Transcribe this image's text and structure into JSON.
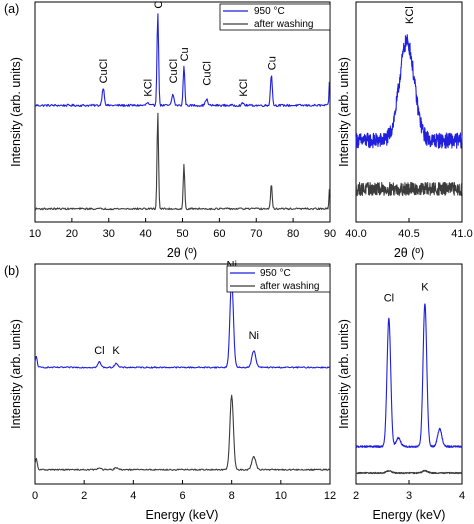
{
  "figure": {
    "panels": [
      "(a)",
      "(b)"
    ]
  },
  "colors": {
    "blue": "#1f1fdc",
    "gray": "#3c3c3c",
    "axis": "#000000"
  },
  "chart_data": [
    {
      "id": "a-main",
      "type": "line",
      "panel_tag": "(a)",
      "xlabel": "2θ (º)",
      "ylabel": "Intensity (arb. units)",
      "xlim": [
        10,
        90
      ],
      "xticks": [
        10,
        20,
        30,
        40,
        50,
        60,
        70,
        80,
        90
      ],
      "ylim": [
        0,
        1
      ],
      "legend": {
        "placement": "top-right"
      },
      "series": [
        {
          "name": "950 °C",
          "color": "#1f1fdc",
          "baseline": 0.53,
          "noise": 0.005,
          "peaks": [
            [
              28.5,
              0.08,
              0.3
            ],
            [
              40.5,
              0.012,
              0.3
            ],
            [
              43.3,
              0.42,
              0.22
            ],
            [
              47.4,
              0.05,
              0.3
            ],
            [
              50.4,
              0.18,
              0.22
            ],
            [
              56.5,
              0.03,
              0.3
            ],
            [
              66.4,
              0.01,
              0.3
            ],
            [
              74.1,
              0.14,
              0.25
            ],
            [
              89.9,
              0.13,
              0.15
            ]
          ]
        },
        {
          "name": "after washing",
          "color": "#3c3c3c",
          "baseline": 0.06,
          "noise": 0.004,
          "peaks": [
            [
              43.3,
              0.44,
              0.2
            ],
            [
              50.4,
              0.2,
              0.2
            ],
            [
              74.1,
              0.11,
              0.22
            ],
            [
              89.9,
              0.11,
              0.15
            ]
          ]
        }
      ],
      "annotations": [
        {
          "text": "CuCl",
          "x": 28.5,
          "y": 0.63
        },
        {
          "text": "KCl",
          "x": 40.5,
          "y": 0.57
        },
        {
          "text": "Cu",
          "x": 43.3,
          "y": 0.97
        },
        {
          "text": "CuCl",
          "x": 47.4,
          "y": 0.63
        },
        {
          "text": "Cu",
          "x": 50.4,
          "y": 0.73
        },
        {
          "text": "CuCl",
          "x": 56.5,
          "y": 0.62
        },
        {
          "text": "KCl",
          "x": 66.4,
          "y": 0.57
        },
        {
          "text": "Cu",
          "x": 74.1,
          "y": 0.69
        }
      ]
    },
    {
      "id": "a-inset",
      "type": "line",
      "xlabel": "2θ (º)",
      "ylabel": "Intensity (arb. units)",
      "xlim": [
        40.0,
        41.0
      ],
      "xticks": [
        "40.0",
        "40.5",
        "41.0"
      ],
      "ylim": [
        0,
        1
      ],
      "series": [
        {
          "name": "",
          "color": "#1f1fdc",
          "baseline": 0.37,
          "noise": 0.035,
          "peaks": [
            [
              40.48,
              0.45,
              0.07
            ]
          ]
        },
        {
          "name": "",
          "color": "#3c3c3c",
          "baseline": 0.15,
          "noise": 0.03,
          "peaks": []
        }
      ],
      "annotations": [
        {
          "text": "KCl",
          "x": 40.5,
          "y": 0.9
        }
      ]
    },
    {
      "id": "b-main",
      "type": "line",
      "panel_tag": "(b)",
      "xlabel": "Energy (keV)",
      "ylabel": "Intensity (arb. units)",
      "xlim": [
        0,
        12
      ],
      "xticks": [
        0,
        2,
        4,
        6,
        8,
        10,
        12
      ],
      "ylim": [
        0,
        1
      ],
      "legend": {
        "placement": "top-right"
      },
      "series": [
        {
          "name": "950 °C",
          "color": "#1f1fdc",
          "baseline": 0.53,
          "noise": 0.003,
          "peaks": [
            [
              2.62,
              0.025,
              0.06
            ],
            [
              3.3,
              0.02,
              0.06
            ],
            [
              8.0,
              0.4,
              0.07
            ],
            [
              8.9,
              0.075,
              0.08
            ],
            [
              0.05,
              0.05,
              0.04
            ]
          ]
        },
        {
          "name": "after washing",
          "color": "#3c3c3c",
          "baseline": 0.065,
          "noise": 0.003,
          "peaks": [
            [
              8.0,
              0.34,
              0.07
            ],
            [
              8.9,
              0.06,
              0.08
            ],
            [
              2.62,
              0.01,
              0.06
            ],
            [
              3.3,
              0.01,
              0.06
            ],
            [
              0.05,
              0.05,
              0.04
            ]
          ]
        }
      ],
      "annotations": [
        {
          "text": "Ni",
          "x": 8.0,
          "y": 0.98
        },
        {
          "text": "Ni",
          "x": 8.9,
          "y": 0.66
        },
        {
          "text": "Cl",
          "x": 2.62,
          "y": 0.59
        },
        {
          "text": "K",
          "x": 3.3,
          "y": 0.59
        }
      ]
    },
    {
      "id": "b-inset",
      "type": "line",
      "xlabel": "Energy (keV)",
      "ylabel": "Intensity (arb. units)",
      "xlim": [
        2,
        4
      ],
      "xticks": [
        2,
        3,
        4
      ],
      "ylim": [
        0,
        1
      ],
      "series": [
        {
          "name": "",
          "color": "#1f1fdc",
          "baseline": 0.17,
          "noise": 0.004,
          "peaks": [
            [
              2.62,
              0.58,
              0.035
            ],
            [
              2.8,
              0.04,
              0.04
            ],
            [
              3.3,
              0.65,
              0.035
            ],
            [
              3.58,
              0.08,
              0.04
            ]
          ]
        },
        {
          "name": "",
          "color": "#3c3c3c",
          "baseline": 0.05,
          "noise": 0.003,
          "peaks": [
            [
              2.62,
              0.01,
              0.05
            ],
            [
              3.3,
              0.01,
              0.05
            ]
          ]
        }
      ],
      "annotations": [
        {
          "text": "Cl",
          "x": 2.62,
          "y": 0.83
        },
        {
          "text": "K",
          "x": 3.3,
          "y": 0.88
        }
      ]
    }
  ]
}
